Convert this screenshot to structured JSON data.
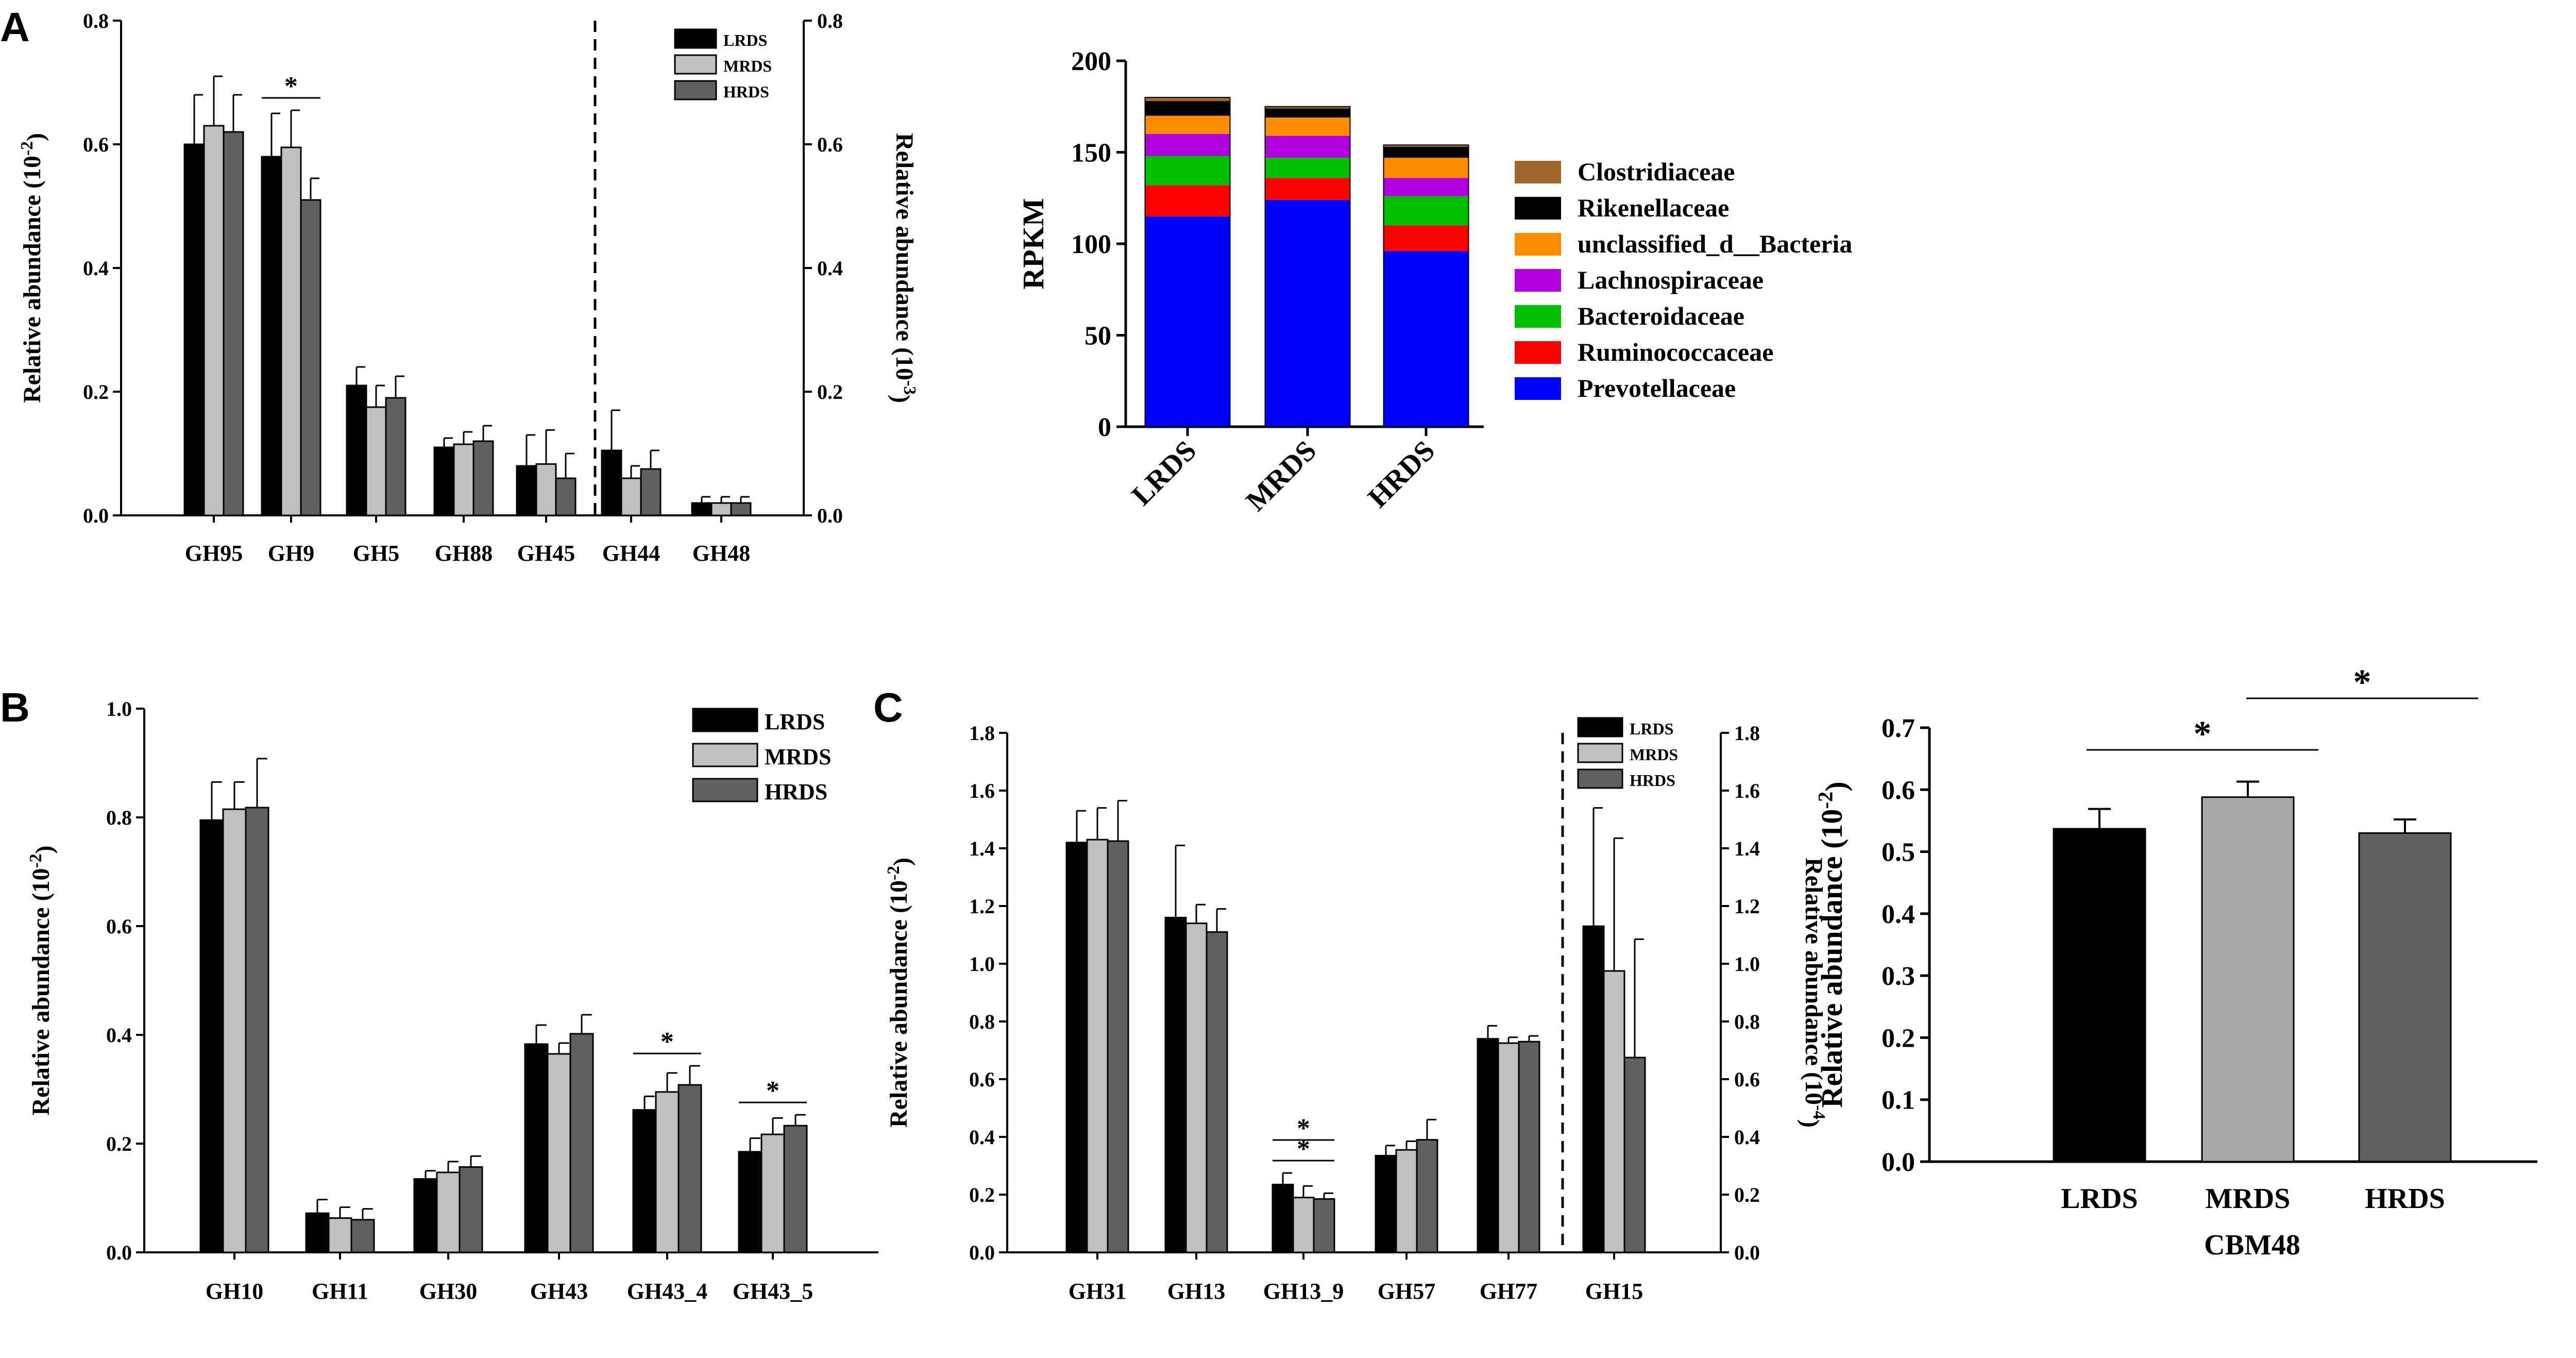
{
  "panel_labels": [
    "A",
    "B",
    "C"
  ],
  "chart_data": [
    {
      "id": "A1",
      "type": "bar",
      "categories": [
        "GH95",
        "GH9",
        "GH5",
        "GH88",
        "GH45",
        "GH44",
        "GH48"
      ],
      "series": [
        {
          "name": "LRDS",
          "values": [
            0.6,
            0.58,
            0.21,
            0.11,
            0.08,
            0.105,
            0.02
          ],
          "errors": [
            0.08,
            0.07,
            0.03,
            0.015,
            0.05,
            0.065,
            0.01
          ],
          "color": "#000000"
        },
        {
          "name": "MRDS",
          "values": [
            0.63,
            0.595,
            0.175,
            0.115,
            0.083,
            0.06,
            0.02
          ],
          "errors": [
            0.08,
            0.06,
            0.035,
            0.02,
            0.055,
            0.02,
            0.01
          ],
          "color": "#C0C0C0"
        },
        {
          "name": "HRDS",
          "values": [
            0.62,
            0.51,
            0.19,
            0.12,
            0.06,
            0.075,
            0.02
          ],
          "errors": [
            0.06,
            0.035,
            0.035,
            0.025,
            0.04,
            0.03,
            0.01
          ],
          "color": "#606060"
        }
      ],
      "ylabel_left": "Relative abundance (10⁻²)",
      "ylabel_right": "Relative abundance (10⁻³)",
      "ylim": [
        0,
        0.8
      ],
      "yticks": [
        "0.0",
        "0.2",
        "0.4",
        "0.6",
        "0.8"
      ],
      "right_axis_categories": [
        "GH44",
        "GH48"
      ],
      "annotations": [
        {
          "text": "*",
          "category": "GH9"
        }
      ],
      "legend": [
        "LRDS",
        "MRDS",
        "HRDS"
      ]
    },
    {
      "id": "A2",
      "type": "bar",
      "stacked": true,
      "categories": [
        "LRDS",
        "MRDS",
        "HRDS"
      ],
      "series": [
        {
          "name": "Prevotellaceae",
          "values": [
            115,
            124,
            96
          ],
          "color": "#0000FF"
        },
        {
          "name": "Ruminococcaceae",
          "values": [
            17,
            12,
            14
          ],
          "color": "#FF0000"
        },
        {
          "name": "Bacteroidaceae",
          "values": [
            16,
            11,
            16
          ],
          "color": "#00C000"
        },
        {
          "name": "Lachnospiraceae",
          "values": [
            12,
            12,
            10
          ],
          "color": "#B000E0"
        },
        {
          "name": "unclassified_d__Bacteria",
          "values": [
            10,
            10,
            11
          ],
          "color": "#FF8C00"
        },
        {
          "name": "Rikenellaceae",
          "values": [
            8,
            5,
            6
          ],
          "color": "#000000"
        },
        {
          "name": "Clostridiaceae",
          "values": [
            2,
            1,
            1
          ],
          "color": "#A0662B"
        }
      ],
      "ylabel": "RPKM",
      "ylim": [
        0,
        200
      ],
      "yticks": [
        "0",
        "50",
        "100",
        "150",
        "200"
      ],
      "legend": [
        "Clostridiaceae",
        "Rikenellaceae",
        "unclassified_d__Bacteria",
        "Lachnospiraceae",
        "Bacteroidaceae",
        "Ruminococcaceae",
        "Prevotellaceae"
      ]
    },
    {
      "id": "B",
      "type": "bar",
      "categories": [
        "GH10",
        "GH11",
        "GH30",
        "GH43",
        "GH43_4",
        "GH43_5"
      ],
      "series": [
        {
          "name": "LRDS",
          "values": [
            0.795,
            0.072,
            0.135,
            0.383,
            0.262,
            0.185
          ],
          "errors": [
            0.07,
            0.025,
            0.015,
            0.035,
            0.025,
            0.025
          ],
          "color": "#000000"
        },
        {
          "name": "MRDS",
          "values": [
            0.815,
            0.063,
            0.147,
            0.365,
            0.295,
            0.217
          ],
          "errors": [
            0.05,
            0.02,
            0.02,
            0.02,
            0.035,
            0.03
          ],
          "color": "#C0C0C0"
        },
        {
          "name": "HRDS",
          "values": [
            0.818,
            0.06,
            0.157,
            0.402,
            0.308,
            0.233
          ],
          "errors": [
            0.09,
            0.02,
            0.02,
            0.035,
            0.035,
            0.02
          ],
          "color": "#606060"
        }
      ],
      "ylabel": "Relative abundance (10⁻²)",
      "ylim": [
        0,
        1.0
      ],
      "yticks": [
        "0.0",
        "0.2",
        "0.4",
        "0.6",
        "0.8",
        "1.0"
      ],
      "annotations": [
        {
          "text": "*",
          "category": "GH43_4"
        },
        {
          "text": "*",
          "category": "GH43_5"
        }
      ],
      "legend": [
        "LRDS",
        "MRDS",
        "HRDS"
      ]
    },
    {
      "id": "C1",
      "type": "bar",
      "categories": [
        "GH31",
        "GH13",
        "GH13_9",
        "GH57",
        "GH77",
        "GH15"
      ],
      "series": [
        {
          "name": "LRDS",
          "values": [
            1.42,
            1.16,
            0.235,
            0.335,
            0.74,
            1.13
          ],
          "errors": [
            0.11,
            0.25,
            0.04,
            0.035,
            0.045,
            0.41
          ],
          "color": "#000000"
        },
        {
          "name": "MRDS",
          "values": [
            1.43,
            1.14,
            0.19,
            0.355,
            0.725,
            0.975
          ],
          "errors": [
            0.11,
            0.065,
            0.04,
            0.03,
            0.02,
            0.46
          ],
          "color": "#C0C0C0"
        },
        {
          "name": "HRDS",
          "values": [
            1.425,
            1.11,
            0.185,
            0.39,
            0.73,
            0.675
          ],
          "errors": [
            0.14,
            0.08,
            0.02,
            0.07,
            0.02,
            0.41
          ],
          "color": "#606060"
        }
      ],
      "ylabel_left": "Relative abundance (10⁻²)",
      "ylabel_right": "Relative abundance (10⁻⁴)",
      "ylim": [
        0,
        1.8
      ],
      "yticks": [
        "0.0",
        "0.2",
        "0.4",
        "0.6",
        "0.8",
        "1.0",
        "1.2",
        "1.4",
        "1.6",
        "1.8"
      ],
      "right_axis_categories": [
        "GH15"
      ],
      "annotations": [
        {
          "text": "*",
          "category": "GH13_9"
        },
        {
          "text": "*",
          "category": "GH13_9"
        }
      ],
      "legend": [
        "LRDS",
        "MRDS",
        "HRDS"
      ]
    },
    {
      "id": "C2",
      "type": "bar",
      "categories": [
        "LRDS",
        "MRDS",
        "HRDS"
      ],
      "values": [
        0.537,
        0.588,
        0.53
      ],
      "errors": [
        0.032,
        0.025,
        0.022
      ],
      "colors": [
        "#000000",
        "#A8A8A8",
        "#606060"
      ],
      "ylabel": "Relative abundance (10⁻²)",
      "xlabel": "CBM48",
      "ylim": [
        0,
        0.7
      ],
      "yticks": [
        "0.0",
        "0.1",
        "0.2",
        "0.3",
        "0.4",
        "0.5",
        "0.6",
        "0.7"
      ],
      "annotations": [
        {
          "text": "*",
          "between": [
            "LRDS",
            "MRDS"
          ]
        },
        {
          "text": "*",
          "between": [
            "MRDS",
            "HRDS"
          ]
        }
      ]
    }
  ]
}
